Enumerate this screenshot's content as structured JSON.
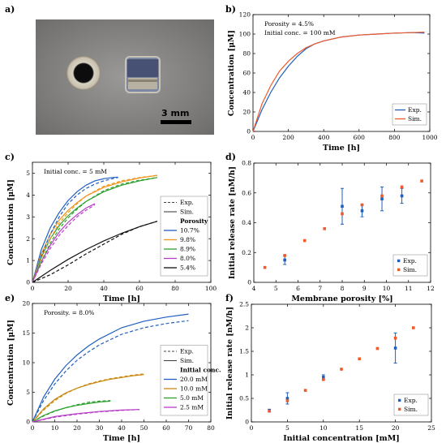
{
  "panel_a": {
    "letter": "a)",
    "scale_label": "3 mm"
  },
  "chart_data": [
    {
      "id": "b",
      "letter": "b)",
      "type": "line",
      "xlabel": "Time [h]",
      "ylabel": "Concentration [μM]",
      "xlim": [
        0,
        1000
      ],
      "ylim": [
        0,
        120
      ],
      "xticks": [
        0,
        200,
        400,
        600,
        800,
        1000
      ],
      "yticks": [
        0,
        20,
        40,
        60,
        80,
        100,
        120
      ],
      "annotations": [
        "Porosity = 4.5%",
        "Initial conc. = 100 mM"
      ],
      "legend_position": "bottom-right",
      "legend": [
        {
          "label": "Exp.",
          "color": "#1f5fbf",
          "dash": "solid"
        },
        {
          "label": "Sim.",
          "color": "#f05a28",
          "dash": "solid"
        }
      ],
      "series": [
        {
          "name": "Exp.",
          "color": "#1f5fbf",
          "dash": "solid",
          "x": [
            0,
            50,
            100,
            150,
            200,
            250,
            300,
            350,
            400,
            500,
            600,
            700,
            800,
            900,
            970
          ],
          "y": [
            0,
            22,
            40,
            55,
            67,
            77,
            85,
            90,
            93,
            97,
            99,
            100,
            101,
            101.5,
            101
          ]
        },
        {
          "name": "Sim.",
          "color": "#f05a28",
          "dash": "solid",
          "x": [
            0,
            50,
            100,
            150,
            200,
            250,
            300,
            350,
            400,
            500,
            600,
            700,
            800,
            900,
            970
          ],
          "y": [
            0,
            28,
            47,
            62,
            72,
            80,
            86,
            90,
            93,
            97,
            99,
            100,
            101,
            101.5,
            102
          ]
        }
      ]
    },
    {
      "id": "c",
      "letter": "c)",
      "type": "line",
      "xlabel": "Time [h]",
      "ylabel": "Concentration [μM]",
      "xlim": [
        0,
        100
      ],
      "ylim": [
        0,
        5.5
      ],
      "xticks": [
        0,
        20,
        40,
        60,
        80,
        100
      ],
      "yticks": [
        0,
        1,
        2,
        3,
        4,
        5
      ],
      "annotations": [
        "Initial conc. = 5 mM"
      ],
      "legend_position": "right",
      "legend": [
        {
          "label": "Exp.",
          "color": "#444444",
          "dash": "dashed"
        },
        {
          "label": "Sim.",
          "color": "#444444",
          "dash": "solid"
        }
      ],
      "legend2_title": "Porosity",
      "legend2": [
        {
          "label": "10.7%",
          "color": "#1f5fbf"
        },
        {
          "label": "9.8%",
          "color": "#f0941e"
        },
        {
          "label": "8.9%",
          "color": "#2ca02c"
        },
        {
          "label": "8.0%",
          "color": "#b83cc8"
        },
        {
          "label": "5.4%",
          "color": "#111111"
        }
      ],
      "series": [
        {
          "name": "10.7%",
          "color": "#1f5fbf",
          "dash": "solid",
          "x": [
            0,
            5,
            10,
            15,
            20,
            25,
            30,
            35,
            40,
            45,
            48
          ],
          "y": [
            0,
            1.5,
            2.5,
            3.2,
            3.75,
            4.15,
            4.45,
            4.65,
            4.75,
            4.8,
            4.82
          ]
        },
        {
          "name": "9.8%",
          "color": "#f0941e",
          "dash": "solid",
          "x": [
            0,
            5,
            10,
            15,
            20,
            25,
            30,
            40,
            50,
            60,
            70
          ],
          "y": [
            0,
            1.3,
            2.2,
            2.85,
            3.3,
            3.65,
            3.95,
            4.35,
            4.6,
            4.78,
            4.9
          ]
        },
        {
          "name": "8.9%",
          "color": "#2ca02c",
          "dash": "solid",
          "x": [
            0,
            5,
            10,
            15,
            20,
            25,
            30,
            40,
            50,
            60,
            70
          ],
          "y": [
            0,
            1.15,
            2.0,
            2.6,
            3.05,
            3.4,
            3.7,
            4.15,
            4.45,
            4.65,
            4.8
          ]
        },
        {
          "name": "8.0%",
          "color": "#b83cc8",
          "dash": "solid",
          "x": [
            0,
            5,
            10,
            15,
            20,
            25,
            30,
            35
          ],
          "y": [
            0,
            0.95,
            1.7,
            2.3,
            2.75,
            3.1,
            3.4,
            3.6
          ]
        },
        {
          "name": "5.4%",
          "color": "#111111",
          "dash": "solid",
          "x": [
            0,
            10,
            20,
            30,
            40,
            50,
            60,
            70
          ],
          "y": [
            0,
            0.55,
            1.05,
            1.5,
            1.9,
            2.25,
            2.55,
            2.8
          ]
        },
        {
          "name": "10.7% Exp.",
          "color": "#1f5fbf",
          "dash": "dashed",
          "x": [
            0,
            5,
            10,
            15,
            20,
            25,
            30,
            35,
            40,
            45,
            48
          ],
          "y": [
            0,
            1.2,
            2.2,
            3.0,
            3.6,
            4.0,
            4.3,
            4.5,
            4.65,
            4.75,
            4.8
          ]
        },
        {
          "name": "9.8% Exp.",
          "color": "#f0941e",
          "dash": "dashed",
          "x": [
            0,
            5,
            10,
            15,
            20,
            25,
            30,
            40,
            50,
            60,
            70
          ],
          "y": [
            0,
            1.1,
            2.0,
            2.7,
            3.2,
            3.6,
            3.95,
            4.4,
            4.65,
            4.8,
            4.9
          ]
        },
        {
          "name": "8.9% Exp.",
          "color": "#2ca02c",
          "dash": "dashed",
          "x": [
            0,
            5,
            10,
            15,
            20,
            25,
            30,
            40,
            50,
            60,
            70
          ],
          "y": [
            0,
            0.95,
            1.8,
            2.45,
            2.95,
            3.35,
            3.7,
            4.2,
            4.5,
            4.68,
            4.8
          ]
        },
        {
          "name": "8.0% Exp.",
          "color": "#b83cc8",
          "dash": "dashed",
          "x": [
            0,
            5,
            10,
            15,
            20,
            25,
            30,
            35
          ],
          "y": [
            0,
            0.85,
            1.55,
            2.15,
            2.6,
            3.0,
            3.3,
            3.55
          ]
        },
        {
          "name": "5.4% Exp.",
          "color": "#111111",
          "dash": "dashed",
          "x": [
            0,
            10,
            20,
            30,
            40,
            50,
            60,
            70
          ],
          "y": [
            0,
            0.35,
            0.8,
            1.3,
            1.75,
            2.2,
            2.55,
            2.8
          ]
        }
      ]
    },
    {
      "id": "d",
      "letter": "d)",
      "type": "scatter",
      "xlabel": "Membrane porosity [%]",
      "ylabel": "Initial release rate [nM/h]",
      "xlim": [
        4,
        12
      ],
      "ylim": [
        0,
        0.8
      ],
      "xticks": [
        4,
        5,
        6,
        7,
        8,
        9,
        10,
        11,
        12
      ],
      "yticks": [
        0,
        0.2,
        0.4,
        0.6,
        0.8
      ],
      "legend_position": "bottom-right",
      "legend": [
        {
          "label": "Exp.",
          "color": "#1f5fbf"
        },
        {
          "label": "Sim.",
          "color": "#f05a28"
        }
      ],
      "exp": {
        "x": [
          5.4,
          8.0,
          8.9,
          9.8,
          10.7
        ],
        "y": [
          0.15,
          0.51,
          0.48,
          0.56,
          0.58
        ],
        "err": [
          0.03,
          0.12,
          0.04,
          0.08,
          0.05
        ]
      },
      "sim": {
        "x": [
          4.5,
          5.4,
          6.3,
          7.2,
          8.0,
          8.9,
          9.8,
          10.7,
          11.6
        ],
        "y": [
          0.1,
          0.18,
          0.28,
          0.36,
          0.46,
          0.52,
          0.58,
          0.64,
          0.68
        ]
      }
    },
    {
      "id": "e",
      "letter": "e)",
      "type": "line",
      "xlabel": "Time [h]",
      "ylabel": "Concentration [μM]",
      "xlim": [
        0,
        80
      ],
      "ylim": [
        0,
        20
      ],
      "xticks": [
        0,
        10,
        20,
        30,
        40,
        50,
        60,
        70,
        80
      ],
      "yticks": [
        0,
        5,
        10,
        15,
        20
      ],
      "annotations": [
        "Porosity. = 8.0%"
      ],
      "legend_position": "right",
      "legend": [
        {
          "label": "Exp.",
          "color": "#444444",
          "dash": "dashed"
        },
        {
          "label": "Sim.",
          "color": "#444444",
          "dash": "solid"
        }
      ],
      "legend2_title": "Initial conc.",
      "legend2": [
        {
          "label": "20.0 mM",
          "color": "#1f5fbf"
        },
        {
          "label": "10.0 mM",
          "color": "#c98a10"
        },
        {
          "label": "5.0 mM",
          "color": "#2ca02c"
        },
        {
          "label": "2.5 mM",
          "color": "#b83cc8"
        }
      ],
      "series": [
        {
          "name": "20.0 mM",
          "color": "#1f5fbf",
          "dash": "solid",
          "x": [
            0,
            5,
            10,
            15,
            20,
            25,
            30,
            40,
            50,
            60,
            70
          ],
          "y": [
            0,
            4.2,
            7.2,
            9.5,
            11.3,
            12.8,
            14.0,
            15.9,
            17.0,
            17.7,
            18.2
          ]
        },
        {
          "name": "10.0 mM",
          "color": "#c98a10",
          "dash": "solid",
          "x": [
            0,
            5,
            10,
            15,
            20,
            25,
            30,
            35,
            40,
            45,
            50
          ],
          "y": [
            0,
            2.2,
            3.8,
            4.9,
            5.7,
            6.3,
            6.8,
            7.2,
            7.5,
            7.8,
            8.0
          ]
        },
        {
          "name": "5.0 mM",
          "color": "#2ca02c",
          "dash": "solid",
          "x": [
            0,
            5,
            10,
            15,
            20,
            25,
            30,
            35
          ],
          "y": [
            0,
            1.1,
            1.85,
            2.4,
            2.8,
            3.1,
            3.35,
            3.5
          ]
        },
        {
          "name": "2.5 mM",
          "color": "#b83cc8",
          "dash": "solid",
          "x": [
            0,
            10,
            20,
            30,
            40,
            48
          ],
          "y": [
            0,
            0.9,
            1.4,
            1.75,
            2.0,
            2.1
          ]
        },
        {
          "name": "20.0 mM Exp.",
          "color": "#1f5fbf",
          "dash": "dashed",
          "x": [
            0,
            5,
            10,
            15,
            20,
            25,
            30,
            40,
            50,
            60,
            70
          ],
          "y": [
            0,
            3.6,
            6.4,
            8.6,
            10.4,
            11.8,
            13.0,
            14.8,
            15.9,
            16.6,
            17.1
          ]
        },
        {
          "name": "10.0 mM Exp.",
          "color": "#c98a10",
          "dash": "dashed",
          "x": [
            0,
            5,
            10,
            15,
            20,
            25,
            30,
            35,
            40,
            45,
            50
          ],
          "y": [
            0,
            2.0,
            3.6,
            4.8,
            5.7,
            6.4,
            6.9,
            7.3,
            7.6,
            7.9,
            8.1
          ]
        },
        {
          "name": "5.0 mM Exp.",
          "color": "#2ca02c",
          "dash": "dashed",
          "x": [
            0,
            5,
            10,
            15,
            20,
            25,
            30,
            35
          ],
          "y": [
            0,
            1.0,
            1.8,
            2.4,
            2.9,
            3.3,
            3.5,
            3.6
          ]
        },
        {
          "name": "2.5 mM Exp.",
          "color": "#b83cc8",
          "dash": "dashed",
          "x": [
            0,
            10,
            20,
            30,
            40,
            48
          ],
          "y": [
            0,
            0.8,
            1.3,
            1.7,
            1.95,
            2.1
          ]
        }
      ]
    },
    {
      "id": "f",
      "letter": "f)",
      "type": "scatter",
      "xlabel": "Initial concentration [mM]",
      "ylabel": "Initial release rate [nM/h]",
      "xlim": [
        0,
        25
      ],
      "ylim": [
        0,
        2.5
      ],
      "xticks": [
        0,
        5,
        10,
        15,
        20,
        25
      ],
      "yticks": [
        0,
        0.5,
        1,
        1.5,
        2,
        2.5
      ],
      "legend_position": "bottom-right",
      "legend": [
        {
          "label": "Exp.",
          "color": "#1f5fbf"
        },
        {
          "label": "Sim.",
          "color": "#f05a28"
        }
      ],
      "exp": {
        "x": [
          2.5,
          5,
          10,
          20
        ],
        "y": [
          0.24,
          0.5,
          0.95,
          1.57
        ],
        "err": [
          0.03,
          0.12,
          0.05,
          0.32
        ]
      },
      "sim": {
        "x": [
          2.5,
          5,
          7.5,
          10,
          12.5,
          15,
          17.5,
          20,
          22.5
        ],
        "y": [
          0.23,
          0.45,
          0.67,
          0.9,
          1.12,
          1.34,
          1.56,
          1.78,
          2.0
        ]
      }
    }
  ]
}
